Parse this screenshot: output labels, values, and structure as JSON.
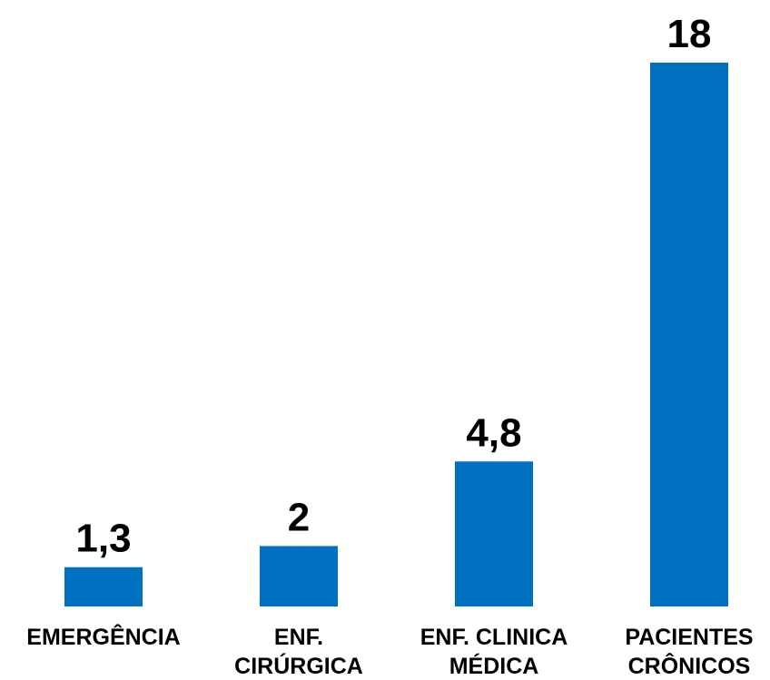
{
  "chart_data": {
    "type": "bar",
    "categories": [
      [
        "EMERGÊNCIA"
      ],
      [
        "ENF.",
        "CIRÚRGICA"
      ],
      [
        "ENF. CLINICA",
        "MÉDICA"
      ],
      [
        "PACIENTES",
        "CRÔNICOS"
      ]
    ],
    "values": [
      1.3,
      2,
      4.8,
      18
    ],
    "data_labels": [
      "1,3",
      "2",
      "4,8",
      "18"
    ],
    "title": "",
    "xlabel": "",
    "ylabel": "",
    "ylim": [
      0,
      18
    ],
    "grid": false,
    "legend": "none",
    "bar_color": "#0070C0"
  }
}
